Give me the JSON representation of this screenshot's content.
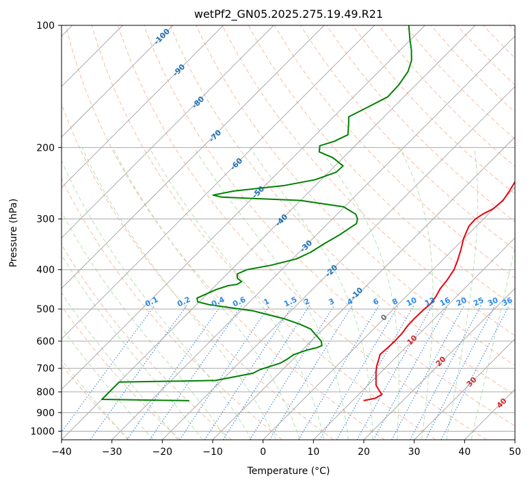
{
  "chart_data": {
    "type": "line",
    "title": "wetPf2_GN05.2025.275.19.49.R21",
    "xlabel": "Temperature (°C)",
    "ylabel": "Pressure (hPa)",
    "xlim": [
      -40,
      50
    ],
    "ylim": [
      1050,
      100
    ],
    "y_scale": "log",
    "skew": "temperature isotherms skewed 45°",
    "grid": true,
    "x_ticks": [
      -40,
      -30,
      -20,
      -10,
      0,
      10,
      20,
      30,
      40,
      50
    ],
    "x_tick_labels": [
      "−40",
      "−30",
      "−20",
      "−10",
      "0",
      "10",
      "20",
      "30",
      "40",
      "50"
    ],
    "y_ticks": [
      100,
      200,
      300,
      400,
      500,
      600,
      700,
      800,
      900,
      1000
    ],
    "y_tick_labels": [
      "100",
      "200",
      "300",
      "400",
      "500",
      "600",
      "700",
      "800",
      "900",
      "1000"
    ],
    "series": [
      {
        "color": "#e8000b",
        "points": [
          [
            841,
            12.2
          ],
          [
            830,
            14.0
          ],
          [
            812,
            14.6
          ],
          [
            790,
            13.0
          ],
          [
            770,
            11.6
          ],
          [
            740,
            10.2
          ],
          [
            715,
            9.0
          ],
          [
            690,
            7.9
          ],
          [
            667,
            7.1
          ],
          [
            647,
            6.3
          ],
          [
            625,
            6.5
          ],
          [
            600,
            6.6
          ],
          [
            575,
            6.5
          ],
          [
            550,
            6.1
          ],
          [
            525,
            6.0
          ],
          [
            500,
            6.1
          ],
          [
            485,
            6.3
          ],
          [
            465,
            5.9
          ],
          [
            445,
            5.2
          ],
          [
            425,
            4.9
          ],
          [
            400,
            4.2
          ],
          [
            380,
            3.1
          ],
          [
            357,
            1.6
          ],
          [
            335,
            -0.1
          ],
          [
            312,
            -1.5
          ],
          [
            300,
            -1.6
          ],
          [
            292,
            -1.1
          ],
          [
            283,
            -0.1
          ],
          [
            270,
            0.2
          ],
          [
            256,
            -0.4
          ],
          [
            245,
            -1.0
          ],
          [
            232,
            -1.6
          ],
          [
            220,
            -2.0
          ],
          [
            210,
            -1.7
          ],
          [
            198,
            -2.3
          ],
          [
            185,
            -3.6
          ],
          [
            170,
            -4.8
          ],
          [
            157,
            -5.4
          ],
          [
            145,
            -6.8
          ],
          [
            130,
            -9.6
          ],
          [
            118,
            -12.6
          ],
          [
            108,
            -16.2
          ],
          [
            100,
            -20.0
          ]
        ]
      },
      {
        "color": "#008000",
        "points": [
          [
            841,
            -22.4
          ],
          [
            835,
            -40
          ],
          [
            757,
            -40
          ],
          [
            750,
            -21.2
          ],
          [
            720,
            -15.2
          ],
          [
            705,
            -14.5
          ],
          [
            680,
            -11.8
          ],
          [
            665,
            -11.2
          ],
          [
            648,
            -10.8
          ],
          [
            632,
            -9.2
          ],
          [
            622,
            -7.5
          ],
          [
            615,
            -7.0
          ],
          [
            600,
            -8.0
          ],
          [
            580,
            -10.2
          ],
          [
            560,
            -12.5
          ],
          [
            545,
            -15.6
          ],
          [
            528,
            -19.9
          ],
          [
            505,
            -27.6
          ],
          [
            488,
            -37.4
          ],
          [
            480,
            -40.3
          ],
          [
            470,
            -41.2
          ],
          [
            448,
            -39.1
          ],
          [
            438,
            -37.5
          ],
          [
            435,
            -36.0
          ],
          [
            428,
            -35.6
          ],
          [
            420,
            -37.1
          ],
          [
            410,
            -38.0
          ],
          [
            400,
            -36.9
          ],
          [
            390,
            -33.0
          ],
          [
            376,
            -29.2
          ],
          [
            362,
            -27.7
          ],
          [
            345,
            -26.7
          ],
          [
            328,
            -25.4
          ],
          [
            315,
            -24.7
          ],
          [
            308,
            -24.3
          ],
          [
            300,
            -25.0
          ],
          [
            292,
            -26.3
          ],
          [
            280,
            -30.2
          ],
          [
            270,
            -40.0
          ],
          [
            265,
            -56.3
          ],
          [
            262,
            -58.4
          ],
          [
            256,
            -55.1
          ],
          [
            248,
            -46.1
          ],
          [
            240,
            -41.2
          ],
          [
            230,
            -38.5
          ],
          [
            222,
            -38.4
          ],
          [
            212,
            -42.0
          ],
          [
            205,
            -45.9
          ],
          [
            198,
            -47.0
          ],
          [
            193,
            -45.0
          ],
          [
            186,
            -43.6
          ],
          [
            175,
            -45.6
          ],
          [
            168,
            -47.0
          ],
          [
            160,
            -45.3
          ],
          [
            150,
            -43.2
          ],
          [
            140,
            -43.4
          ],
          [
            130,
            -44.2
          ],
          [
            122,
            -45.7
          ],
          [
            115,
            -47.8
          ],
          [
            108,
            -50.3
          ],
          [
            100,
            -53.2
          ]
        ]
      }
    ],
    "annotations": {
      "dry_adiabat_labels": [
        "-100",
        "-90",
        "-80",
        "-70",
        "-60",
        "-50",
        "-40",
        "-30",
        "-20",
        "-10"
      ],
      "moist_adiabat_labels": [
        "10",
        "20",
        "30",
        "40"
      ],
      "mixing_ratio_labels": [
        "0.1",
        "0.2",
        "0.4",
        "0.6",
        "1",
        "1.5",
        "2",
        "3",
        "4",
        "6",
        "8",
        "10",
        "13",
        "16",
        "20",
        "25",
        "30",
        "36"
      ],
      "zero_label": "0"
    },
    "colors": {
      "temperature": "#e8000b",
      "dewpoint": "#008000",
      "isotherms": "#a9a9a9",
      "isobars": "#a9a9a9",
      "dry_adiabats": "#f4a582",
      "moist_adiabats": "#a1d99b",
      "mixing_ratio": "#1f77d4",
      "label_dry": "#1f6fb0",
      "label_moist": "#d0282a",
      "label_mixing": "#2a8ae8"
    }
  }
}
